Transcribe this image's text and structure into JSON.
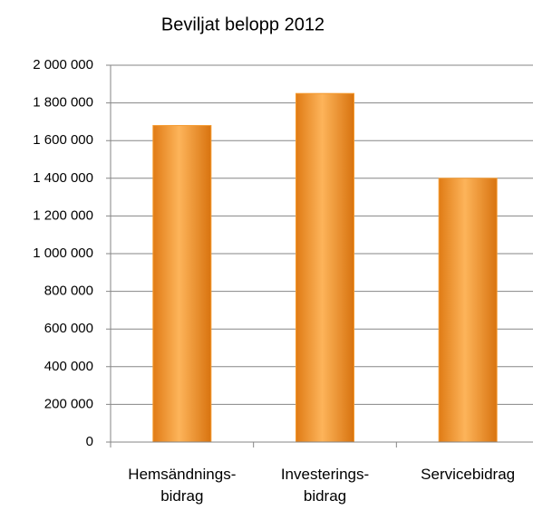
{
  "chart_data": {
    "type": "bar",
    "title": "Beviljat belopp 2012",
    "categories": [
      "Hemsändnings-bidrag",
      "Investerings-bidrag",
      "Servicebidrag"
    ],
    "values": [
      1680000,
      1850000,
      1400000
    ],
    "color": "#f59a2e",
    "ylim": [
      0,
      2000000
    ],
    "yticks": [
      0,
      {
        "value": 200000,
        "label": "200 000"
      },
      {
        "value": 400000,
        "label": "400 000"
      },
      {
        "value": 600000,
        "label": "600 000"
      },
      {
        "value": 800000,
        "label": "800 000"
      },
      {
        "value": 1000000,
        "label": "1 000 000"
      },
      {
        "value": 1200000,
        "label": "1 200 000"
      },
      {
        "value": 1400000,
        "label": "1 400 000"
      },
      {
        "value": 1600000,
        "label": "1 600 000"
      },
      {
        "value": 1800000,
        "label": "1 800 000"
      },
      {
        "value": 2000000,
        "label": "2 000 000"
      }
    ],
    "grid": true
  }
}
